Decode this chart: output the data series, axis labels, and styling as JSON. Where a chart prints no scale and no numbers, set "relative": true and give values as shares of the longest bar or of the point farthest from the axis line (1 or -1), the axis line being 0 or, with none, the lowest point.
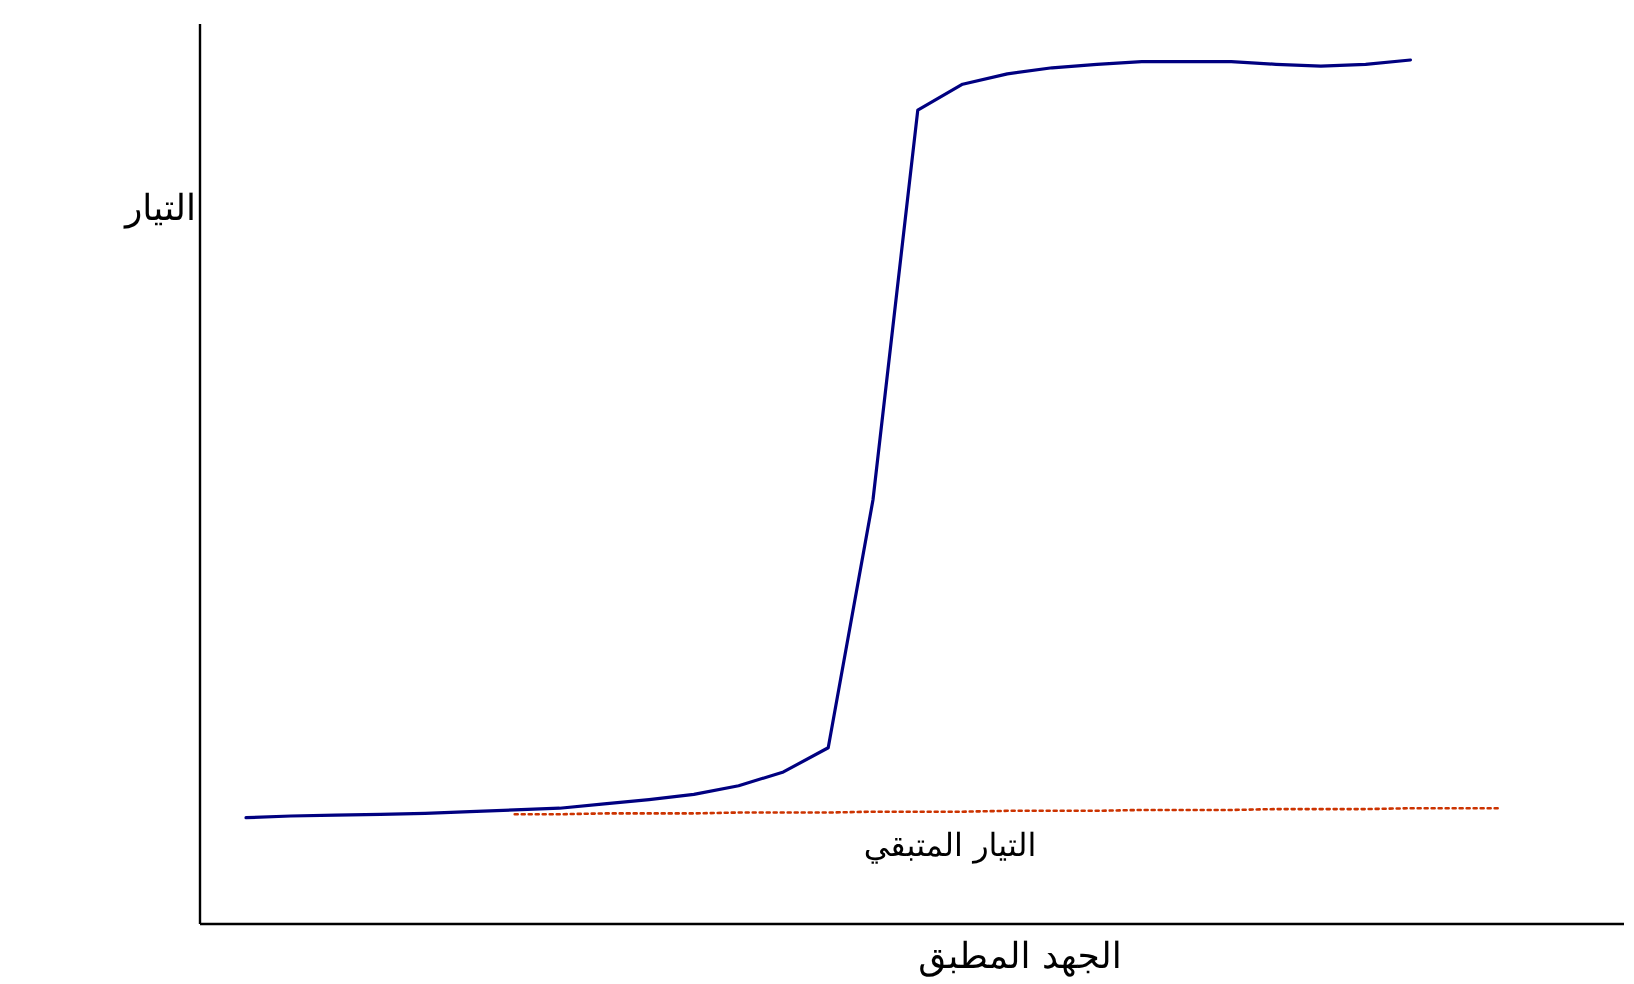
{
  "chart_data": {
    "type": "line",
    "relative": true,
    "xlabel": "الجهد المطبق",
    "ylabel": "التيار",
    "categories": [
      null,
      null,
      null,
      null,
      null,
      null,
      null,
      null,
      null,
      null,
      null,
      null,
      null,
      null,
      null,
      null,
      null,
      null,
      null,
      null,
      null,
      null,
      null,
      null,
      null,
      null,
      null,
      null,
      null
    ],
    "series": [
      {
        "color": "#000080",
        "line_style": "solid",
        "values": [
          0.123,
          0.125,
          0.126,
          0.127,
          0.128,
          0.13,
          0.132,
          0.134,
          0.139,
          0.144,
          0.15,
          0.16,
          0.176,
          0.204,
          0.491,
          0.942,
          0.972,
          0.984,
          0.991,
          0.995,
          0.998,
          0.998,
          0.998,
          0.995,
          0.993,
          0.995,
          1,
          null,
          null
        ]
      },
      {
        "color": "#cc3300",
        "line_style": "dotted",
        "values": [
          null,
          null,
          null,
          null,
          null,
          null,
          0.127,
          0.127,
          0.128,
          0.128,
          0.128,
          0.129,
          0.129,
          0.129,
          0.13,
          0.13,
          0.13,
          0.131,
          0.131,
          0.131,
          0.132,
          0.132,
          0.132,
          0.133,
          0.133,
          0.133,
          0.134,
          0.134,
          0.134
        ]
      }
    ],
    "annotations": [
      "التيار المتبقي"
    ]
  }
}
